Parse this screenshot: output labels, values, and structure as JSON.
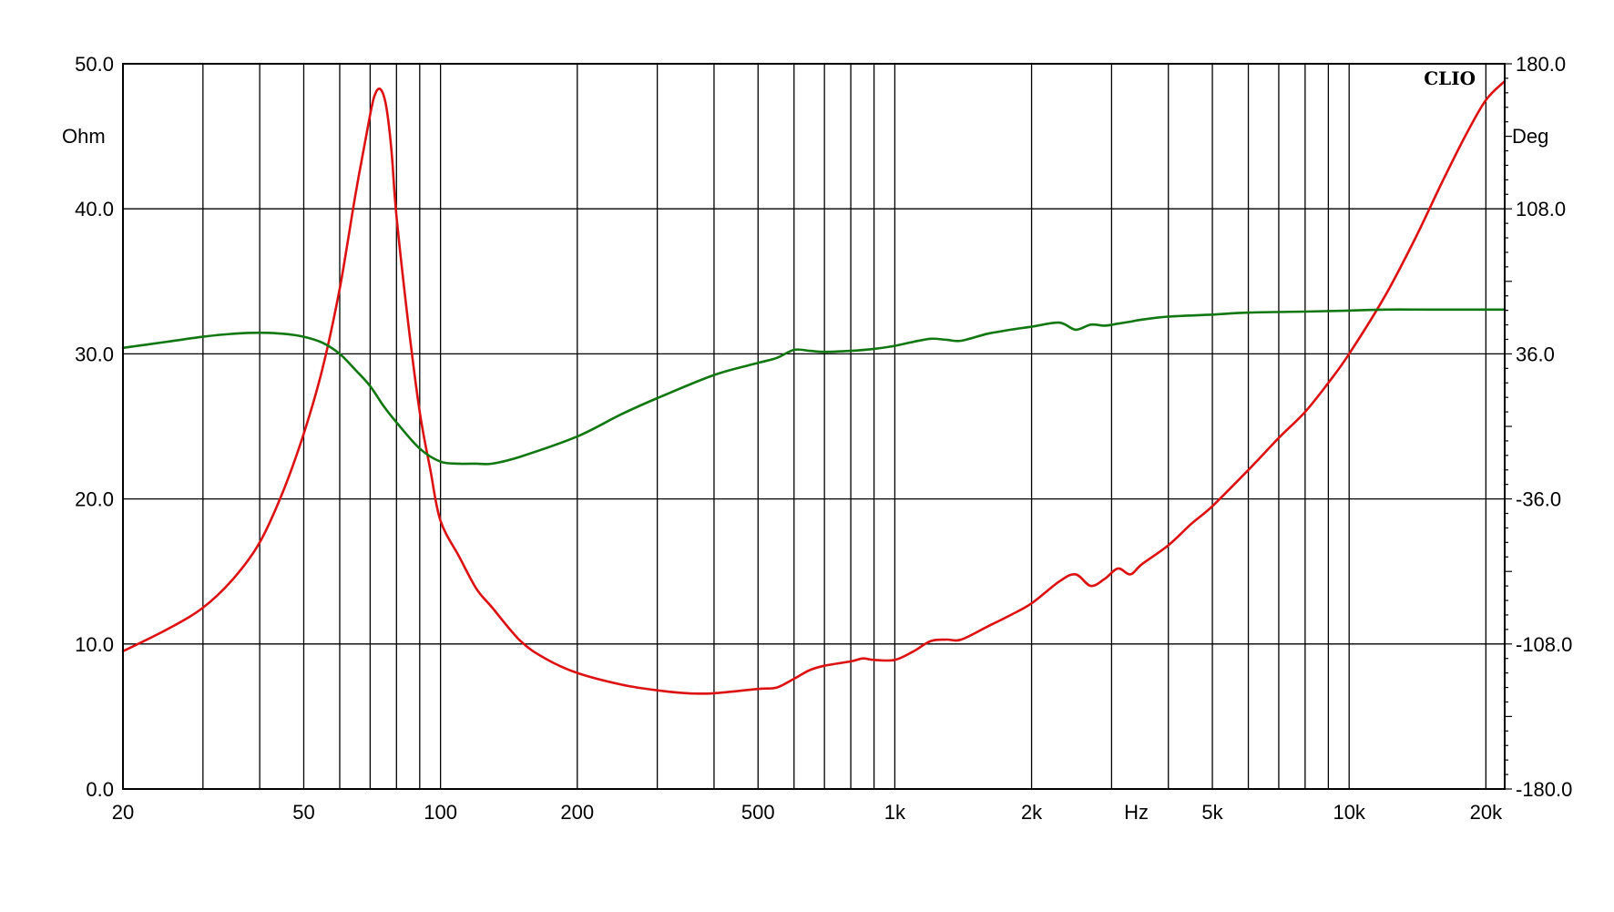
{
  "chart_data": {
    "type": "line",
    "brand_label": "CLIO",
    "x_scale": "log",
    "xlim": [
      20,
      22000
    ],
    "x_ticks": [
      {
        "value": 20,
        "label": "20"
      },
      {
        "value": 50,
        "label": "50"
      },
      {
        "value": 100,
        "label": "100"
      },
      {
        "value": 200,
        "label": "200"
      },
      {
        "value": 500,
        "label": "500"
      },
      {
        "value": 1000,
        "label": "1k"
      },
      {
        "value": 2000,
        "label": "2k"
      },
      {
        "value": 5000,
        "label": "5k"
      },
      {
        "value": 10000,
        "label": "10k"
      },
      {
        "value": 20000,
        "label": "20k"
      }
    ],
    "x_unit_label": "Hz",
    "x_unit_position_value": 3400,
    "x_grid": [
      20,
      30,
      40,
      50,
      60,
      70,
      80,
      90,
      100,
      200,
      300,
      400,
      500,
      600,
      700,
      800,
      900,
      1000,
      2000,
      3000,
      4000,
      5000,
      6000,
      7000,
      8000,
      9000,
      10000,
      20000
    ],
    "y_left": {
      "unit": "Ohm",
      "ylim": [
        0,
        50
      ],
      "ticks": [
        "0.0",
        "10.0",
        "20.0",
        "30.0",
        "40.0",
        "50.0"
      ]
    },
    "y_right": {
      "unit": "Deg",
      "ylim": [
        -180,
        180
      ],
      "ticks": [
        "-180.0",
        "-108.0",
        "-36.0",
        "36.0",
        "108.0",
        "180.0"
      ]
    },
    "grid": true,
    "series": [
      {
        "color": "#dd1111",
        "axis": "left",
        "x": [
          20,
          25,
          30,
          35,
          40,
          45,
          50,
          55,
          60,
          65,
          70,
          72,
          74,
          76,
          78,
          80,
          85,
          90,
          95,
          100,
          110,
          120,
          130,
          150,
          170,
          200,
          250,
          300,
          350,
          400,
          500,
          550,
          600,
          650,
          700,
          800,
          850,
          900,
          1000,
          1100,
          1200,
          1300,
          1400,
          1600,
          1800,
          2000,
          2300,
          2500,
          2700,
          2900,
          3100,
          3300,
          3500,
          4000,
          4500,
          5000,
          6000,
          7000,
          8000,
          9000,
          10000,
          12000,
          14000,
          16000,
          18000,
          20000,
          22000
        ],
        "values": [
          9.5,
          11.0,
          12.5,
          14.5,
          17.0,
          20.5,
          24.5,
          29.0,
          34.5,
          41.0,
          46.5,
          48.0,
          48.2,
          47.0,
          44.0,
          39.5,
          32.0,
          26.0,
          22.0,
          18.5,
          16.0,
          13.8,
          12.5,
          10.2,
          9.0,
          8.0,
          7.2,
          6.8,
          6.6,
          6.6,
          6.9,
          7.0,
          7.6,
          8.2,
          8.5,
          8.8,
          9.0,
          8.9,
          8.9,
          9.5,
          10.2,
          10.3,
          10.3,
          11.2,
          12.0,
          12.8,
          14.3,
          14.8,
          14.0,
          14.5,
          15.2,
          14.8,
          15.5,
          16.8,
          18.3,
          19.5,
          22.0,
          24.2,
          26.0,
          28.0,
          30.0,
          34.0,
          38.0,
          41.8,
          45.0,
          47.5,
          48.8
        ]
      },
      {
        "color": "#117711",
        "axis": "right",
        "x": [
          20,
          25,
          30,
          35,
          40,
          45,
          50,
          55,
          60,
          65,
          70,
          75,
          80,
          90,
          100,
          110,
          120,
          130,
          150,
          200,
          250,
          300,
          400,
          500,
          550,
          600,
          650,
          700,
          800,
          900,
          1000,
          1100,
          1200,
          1300,
          1400,
          1600,
          1800,
          2000,
          2300,
          2500,
          2700,
          2900,
          3100,
          3300,
          3500,
          4000,
          5000,
          6000,
          8000,
          10000,
          12000,
          15000,
          20000,
          22000
        ],
        "values": [
          39.0,
          42.0,
          44.5,
          46.0,
          46.5,
          46.0,
          44.5,
          41.5,
          36.0,
          28.0,
          20.0,
          10.0,
          2.0,
          -11.0,
          -17.5,
          -18.5,
          -18.5,
          -18.5,
          -15.0,
          -5.0,
          6.0,
          14.0,
          25.5,
          31.5,
          34.0,
          38.0,
          37.5,
          37.0,
          37.5,
          38.5,
          40.0,
          42.0,
          43.5,
          43.0,
          42.5,
          46.0,
          48.0,
          49.5,
          51.5,
          48.0,
          50.5,
          50.0,
          51.0,
          52.0,
          53.0,
          54.5,
          55.5,
          56.5,
          57.0,
          57.5,
          58.0,
          58.0,
          58.0,
          58.0
        ]
      }
    ]
  }
}
